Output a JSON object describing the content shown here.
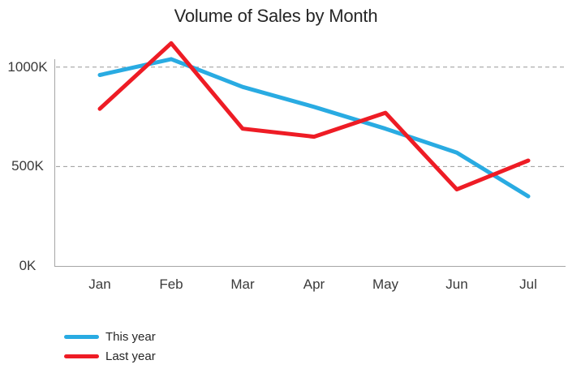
{
  "chart_data": {
    "type": "line",
    "title": "Volume of Sales by Month",
    "categories": [
      "Jan",
      "Feb",
      "Mar",
      "Apr",
      "May",
      "Jun",
      "Jul"
    ],
    "series": [
      {
        "name": "This year",
        "color": "#29abe2",
        "values": [
          960,
          1040,
          900,
          800,
          690,
          570,
          350
        ]
      },
      {
        "name": "Last year",
        "color": "#ee1c25",
        "values": [
          790,
          1120,
          690,
          650,
          770,
          385,
          530
        ]
      }
    ],
    "unit": "K",
    "y_ticks": [
      {
        "value": 0,
        "label": "0K"
      },
      {
        "value": 500,
        "label": "500K"
      },
      {
        "value": 1000,
        "label": "1000K"
      }
    ],
    "ylim": [
      0,
      1150
    ],
    "grid": "horizontal dashed gridlines at 500K and 1000K",
    "legend_position": "bottom-left",
    "colors": {
      "gridline": "#999999",
      "axis": "#a6a6a6",
      "text": "#3a3a3a",
      "title_text": "#262626"
    }
  }
}
